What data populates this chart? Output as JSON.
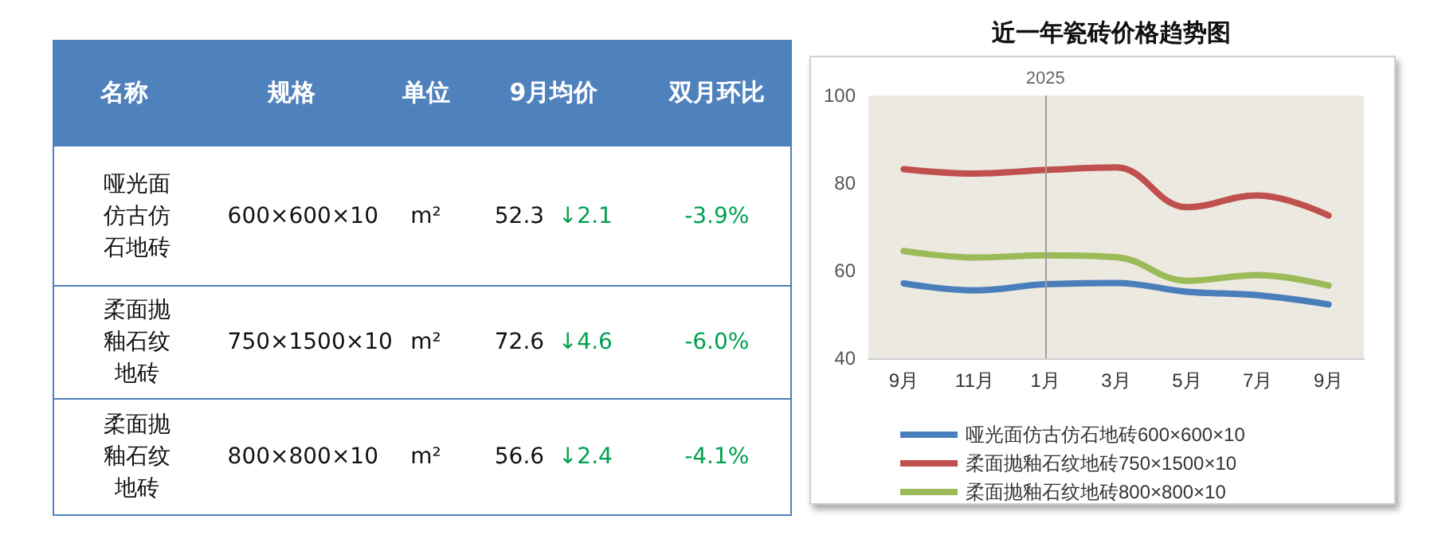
{
  "chart_data": [
    {
      "type": "other",
      "categories": [
        "名称",
        "规格",
        "单位",
        "9月均价",
        "双月环比"
      ],
      "cell_labels": [
        [
          "哑光面仿古仿石地砖",
          "600×600×10",
          "m²",
          "52.3 ↓2.1",
          "-3.9%"
        ],
        [
          "柔面抛釉石纹地砖",
          "750×1500×10",
          "m²",
          "72.6 ↓4.6",
          "-6.0%"
        ],
        [
          "柔面抛釉石纹地砖",
          "800×800×10",
          "m²",
          "56.6 ↓2.4",
          "-4.1%"
        ]
      ]
    },
    {
      "type": "line",
      "title": "近一年瓷砖价格趋势图",
      "categories": [
        "9月",
        "11月",
        "1月",
        "3月",
        "5月",
        "7月",
        "9月"
      ],
      "series": [
        {
          "name": "哑光面仿古仿石地砖600×600×10",
          "color": "#4a7ebb",
          "values": [
            57.1,
            55.5,
            56.9,
            57.2,
            55.2,
            54.4,
            52.3
          ]
        },
        {
          "name": "柔面抛釉石纹地砖750×1500×10",
          "color": "#c0504d",
          "values": [
            83.2,
            82.2,
            83.0,
            83.6,
            74.5,
            77.2,
            72.6
          ]
        },
        {
          "name": "柔面抛釉石纹地砖800×800×10",
          "color": "#9bbb59",
          "values": [
            64.5,
            63.0,
            63.5,
            63.1,
            57.7,
            59.0,
            56.6
          ]
        }
      ],
      "ylim": [
        40,
        100
      ],
      "yticks": [
        40,
        60,
        80,
        100
      ],
      "grid": false,
      "legend": "bottom",
      "marker": "none",
      "line_style": "solid",
      "ref_lines": [
        {
          "axis": "x",
          "value": "1月",
          "label": "2025",
          "color": "#a0a0a0"
        }
      ]
    }
  ]
}
